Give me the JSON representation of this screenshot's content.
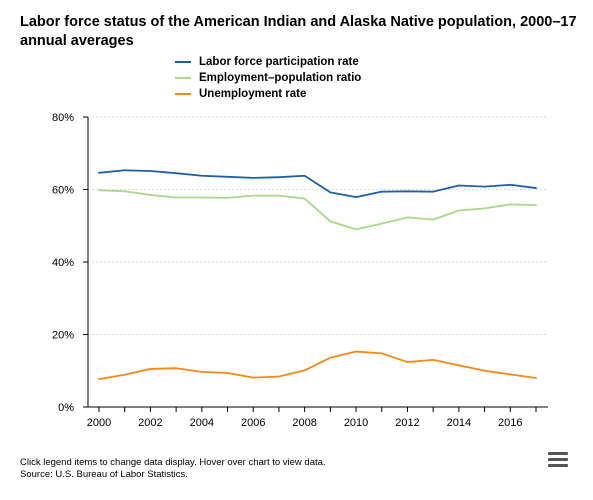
{
  "chart_data": {
    "type": "line",
    "title": "Labor force status of the American Indian and Alaska Native population, 2000–17 annual averages",
    "xlabel": "",
    "ylabel": "",
    "x": [
      2000,
      2001,
      2002,
      2003,
      2004,
      2005,
      2006,
      2007,
      2008,
      2009,
      2010,
      2011,
      2012,
      2013,
      2014,
      2015,
      2016,
      2017
    ],
    "x_ticks": [
      "2000",
      "2002",
      "2004",
      "2006",
      "2008",
      "2010",
      "2012",
      "2014",
      "2016"
    ],
    "x_tick_values": [
      2000,
      2002,
      2004,
      2006,
      2008,
      2010,
      2012,
      2014,
      2016
    ],
    "y_ticks": [
      "0%",
      "20%",
      "40%",
      "60%",
      "80%"
    ],
    "y_tick_values": [
      0,
      20,
      40,
      60,
      80
    ],
    "ylim": [
      0,
      80
    ],
    "xlim": [
      2000,
      2017
    ],
    "grid": true,
    "legend_position": "top",
    "series": [
      {
        "name": "Labor force participation rate",
        "color": "#1f5fa8",
        "values": [
          64.6,
          65.3,
          65.1,
          64.5,
          63.8,
          63.5,
          63.2,
          63.4,
          63.8,
          59.2,
          57.9,
          59.4,
          59.5,
          59.4,
          61.1,
          60.8,
          61.3,
          60.4
        ]
      },
      {
        "name": "Employment–population ratio",
        "color": "#a8d88a",
        "values": [
          59.8,
          59.5,
          58.5,
          57.8,
          57.8,
          57.7,
          58.3,
          58.3,
          57.5,
          51.2,
          49.0,
          50.6,
          52.3,
          51.7,
          54.2,
          54.8,
          55.9,
          55.7
        ]
      },
      {
        "name": "Unemployment rate",
        "color": "#f08a1e",
        "values": [
          7.7,
          8.9,
          10.5,
          10.7,
          9.7,
          9.4,
          8.1,
          8.4,
          10.1,
          13.6,
          15.3,
          14.8,
          12.4,
          13.0,
          11.5,
          10.0,
          9.0,
          8.0
        ]
      }
    ]
  },
  "footer": {
    "line1": "Click legend items to change data display. Hover over chart to view data.",
    "line2": "Source: U.S. Bureau of Labor Statistics."
  },
  "menu": {
    "icon": "hamburger-menu-icon"
  }
}
